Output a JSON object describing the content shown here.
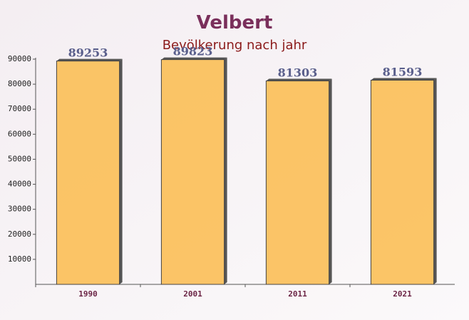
{
  "chart_data": {
    "type": "bar",
    "title": "Velbert",
    "subtitle": "Bevölkerung nach jahr",
    "categories": [
      "1990",
      "2001",
      "2011",
      "2021"
    ],
    "values": [
      89253,
      89823,
      81303,
      81593
    ],
    "color": "#fbbf57",
    "ylim": [
      0,
      90000
    ],
    "yticks": [
      10000,
      20000,
      30000,
      40000,
      50000,
      60000,
      70000,
      80000,
      90000
    ]
  }
}
